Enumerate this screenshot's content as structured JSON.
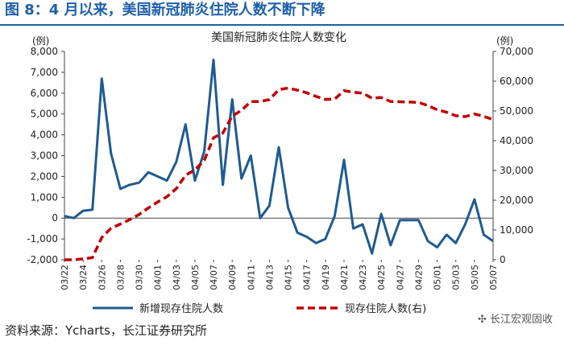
{
  "header": {
    "title": "图 8：4 月以来，美国新冠肺炎住院人数不断下降"
  },
  "footer": {
    "source": "资料来源：Ycharts，长江证券研究所",
    "watermark": "长江宏观固收"
  },
  "colors": {
    "header": "#1f5fa8",
    "series_left": "#1f5b8f",
    "series_right": "#c00000"
  },
  "chart_data": {
    "type": "line",
    "title": "美国新冠肺炎住院人数变化",
    "ylabel_left": "(例)",
    "ylabel_right": "(例)",
    "ylim_left": [
      -2000,
      8000
    ],
    "ylim_right": [
      0,
      70000
    ],
    "yticks_left": [
      "8,000",
      "7,000",
      "6,000",
      "5,000",
      "4,000",
      "3,000",
      "2,000",
      "1,000",
      "0",
      "-1,000",
      "-2,000"
    ],
    "yticks_right": [
      "70,000",
      "60,000",
      "50,000",
      "40,000",
      "30,000",
      "20,000",
      "10,000",
      "0"
    ],
    "x": [
      "03/22",
      "03/23",
      "03/24",
      "03/25",
      "03/26",
      "03/27",
      "03/28",
      "03/29",
      "03/30",
      "03/31",
      "04/01",
      "04/02",
      "04/03",
      "04/04",
      "04/05",
      "04/06",
      "04/07",
      "04/08",
      "04/09",
      "04/10",
      "04/11",
      "04/12",
      "04/13",
      "04/14",
      "04/15",
      "04/16",
      "04/17",
      "04/18",
      "04/19",
      "04/20",
      "04/21",
      "04/22",
      "04/23",
      "04/24",
      "04/25",
      "04/26",
      "04/27",
      "04/28",
      "04/29",
      "04/30",
      "05/01",
      "05/02",
      "05/03",
      "05/04",
      "05/05",
      "05/06",
      "05/07"
    ],
    "xtick_labels": [
      "03/22",
      "03/24",
      "03/26",
      "03/28",
      "03/30",
      "04/01",
      "04/03",
      "04/05",
      "04/07",
      "04/09",
      "04/11",
      "04/13",
      "04/15",
      "04/17",
      "04/19",
      "04/21",
      "04/23",
      "04/25",
      "04/27",
      "04/29",
      "05/01",
      "05/03",
      "05/05",
      "05/07"
    ],
    "series": [
      {
        "name": "新增现存住院人数",
        "axis": "left",
        "style": "solid",
        "values": [
          100,
          0,
          350,
          400,
          6700,
          3100,
          1400,
          1600,
          1700,
          2200,
          2000,
          1800,
          2700,
          4500,
          1800,
          3200,
          7600,
          1600,
          5700,
          1900,
          3000,
          0,
          600,
          3400,
          500,
          -700,
          -900,
          -1200,
          -1000,
          100,
          2800,
          -500,
          -300,
          -1700,
          200,
          -1300,
          -100,
          -100,
          -100,
          -1100,
          -1400,
          -800,
          -1200,
          -300,
          900,
          -800,
          -1100
        ]
      },
      {
        "name": "现存住院人数(右)",
        "axis": "right",
        "style": "dashed",
        "values": [
          0,
          0,
          300,
          700,
          7500,
          10600,
          12000,
          13500,
          15200,
          17400,
          19400,
          21200,
          23900,
          28400,
          30200,
          33400,
          41000,
          42600,
          48300,
          50200,
          53200,
          53200,
          53800,
          57200,
          57700,
          57000,
          56100,
          54900,
          53900,
          54000,
          56800,
          56300,
          56000,
          54300,
          54500,
          53200,
          53100,
          53000,
          52900,
          51800,
          50400,
          49600,
          48400,
          48100,
          49000,
          48200,
          47100
        ]
      }
    ]
  }
}
